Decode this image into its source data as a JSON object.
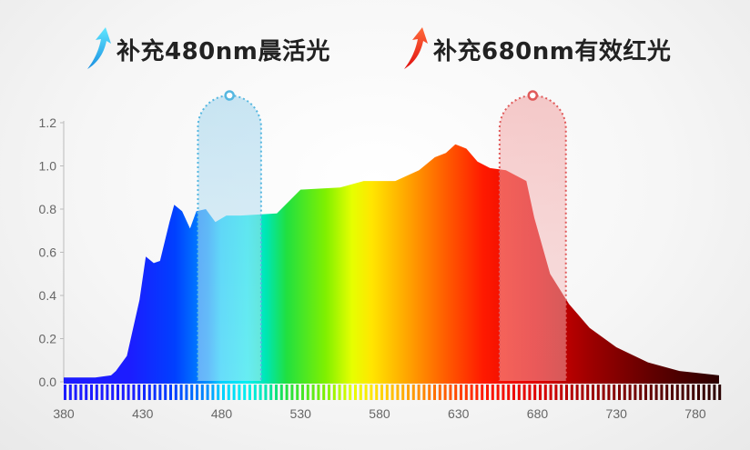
{
  "headlines": [
    {
      "text": "补充480nm晨活光",
      "color_top": "#5fe6ff",
      "color_bottom": "#1a8fe0"
    },
    {
      "text": "补充680nm有效红光",
      "color_top": "#ff6a3a",
      "color_bottom": "#e01010"
    }
  ],
  "chart_data": {
    "type": "area",
    "title": "",
    "xlabel": "",
    "ylabel": "",
    "xlim": [
      380,
      795
    ],
    "ylim": [
      0,
      1.2
    ],
    "x_ticks": [
      380,
      430,
      480,
      530,
      580,
      630,
      680,
      730,
      780
    ],
    "y_ticks": [
      0.0,
      0.2,
      0.4,
      0.6,
      0.8,
      1.0,
      1.2
    ],
    "y_tick_labels": [
      "0.0",
      "0.2",
      "0.4",
      "0.6",
      "0.8",
      "1.0",
      "1.2"
    ],
    "grid": false,
    "series": [
      {
        "x": [
          380,
          400,
          410,
          413,
          420,
          428,
          432,
          437,
          441,
          447,
          450,
          455,
          460,
          464,
          470,
          476,
          483,
          492,
          515,
          530,
          555,
          570,
          590,
          605,
          615,
          622,
          628,
          635,
          642,
          650,
          660,
          673,
          678,
          688,
          700,
          713,
          730,
          750,
          770,
          795
        ],
        "y": [
          0.02,
          0.02,
          0.03,
          0.05,
          0.12,
          0.38,
          0.58,
          0.55,
          0.56,
          0.74,
          0.82,
          0.79,
          0.71,
          0.79,
          0.8,
          0.74,
          0.77,
          0.77,
          0.78,
          0.89,
          0.9,
          0.93,
          0.93,
          0.98,
          1.04,
          1.06,
          1.1,
          1.08,
          1.02,
          0.99,
          0.98,
          0.93,
          0.76,
          0.5,
          0.36,
          0.25,
          0.16,
          0.09,
          0.05,
          0.03
        ]
      }
    ],
    "highlight_bands": [
      {
        "x_start": 465,
        "x_end": 505,
        "center": 483,
        "color": "#5aaed6",
        "border": "#55b7e0"
      },
      {
        "x_start": 656,
        "x_end": 698,
        "center": 677,
        "color": "#e38b8b",
        "border": "#e05a5a"
      }
    ]
  }
}
